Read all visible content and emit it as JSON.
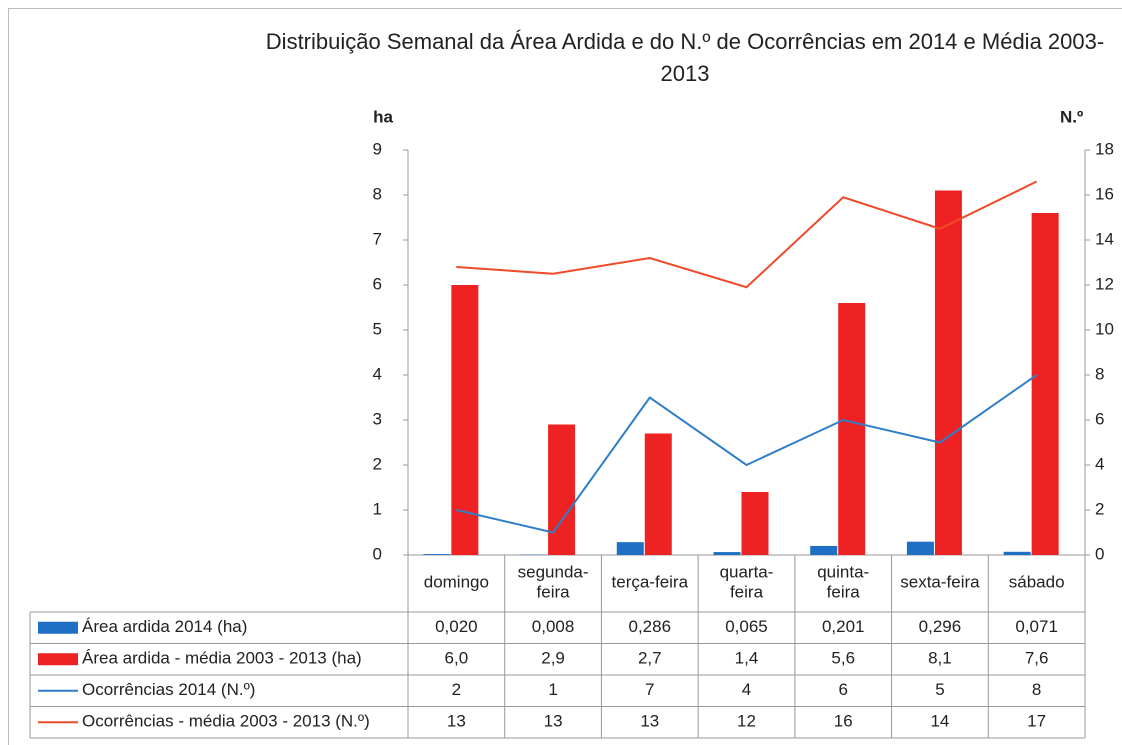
{
  "chart_data": {
    "type": "bar",
    "title": "Distribuição Semanal da Área Ardida e do N.º de Ocorrências em 2014 e Média 2003-2013",
    "ylabel": "ha",
    "y2label": "N.º",
    "categories": [
      "domingo",
      "segunda-\nfeira",
      "terça-feira",
      "quarta-\nfeira",
      "quinta-\nfeira",
      "sexta-feira",
      "sábado"
    ],
    "ylim": [
      0,
      9
    ],
    "yticks": [
      0,
      1,
      2,
      3,
      4,
      5,
      6,
      7,
      8,
      9
    ],
    "y2lim": [
      0,
      18
    ],
    "y2ticks": [
      0,
      2,
      4,
      6,
      8,
      10,
      12,
      14,
      16,
      18
    ],
    "grid": false,
    "series": [
      {
        "name": "Área ardida 2014 (ha)",
        "type": "bar",
        "color": "#1f6fc5",
        "values": [
          0.02,
          0.008,
          0.286,
          0.065,
          0.201,
          0.296,
          0.071
        ],
        "value_labels": [
          "0,020",
          "0,008",
          "0,286",
          "0,065",
          "0,201",
          "0,296",
          "0,071"
        ]
      },
      {
        "name": "Área ardida - média 2003 - 2013 (ha)",
        "type": "bar",
        "color": "#ee2222",
        "values": [
          6.0,
          2.9,
          2.7,
          1.4,
          5.6,
          8.1,
          7.6
        ],
        "value_labels": [
          "6,0",
          "2,9",
          "2,7",
          "1,4",
          "5,6",
          "8,1",
          "7,6"
        ]
      },
      {
        "name": "Ocorrências 2014 (N.º)",
        "type": "line",
        "axis": "y2",
        "color": "#2f7fc8",
        "values": [
          2,
          1,
          7,
          4,
          6,
          5,
          8
        ]
      },
      {
        "name": "Ocorrências - média 2003 - 2013 (N.º)",
        "type": "line",
        "axis": "y2",
        "color": "#f04a2a",
        "values": [
          12.8,
          12.5,
          13.2,
          11.9,
          15.9,
          14.5,
          16.6
        ],
        "value_labels": [
          "13",
          "13",
          "13",
          "12",
          "16",
          "14",
          "17"
        ]
      }
    ]
  }
}
